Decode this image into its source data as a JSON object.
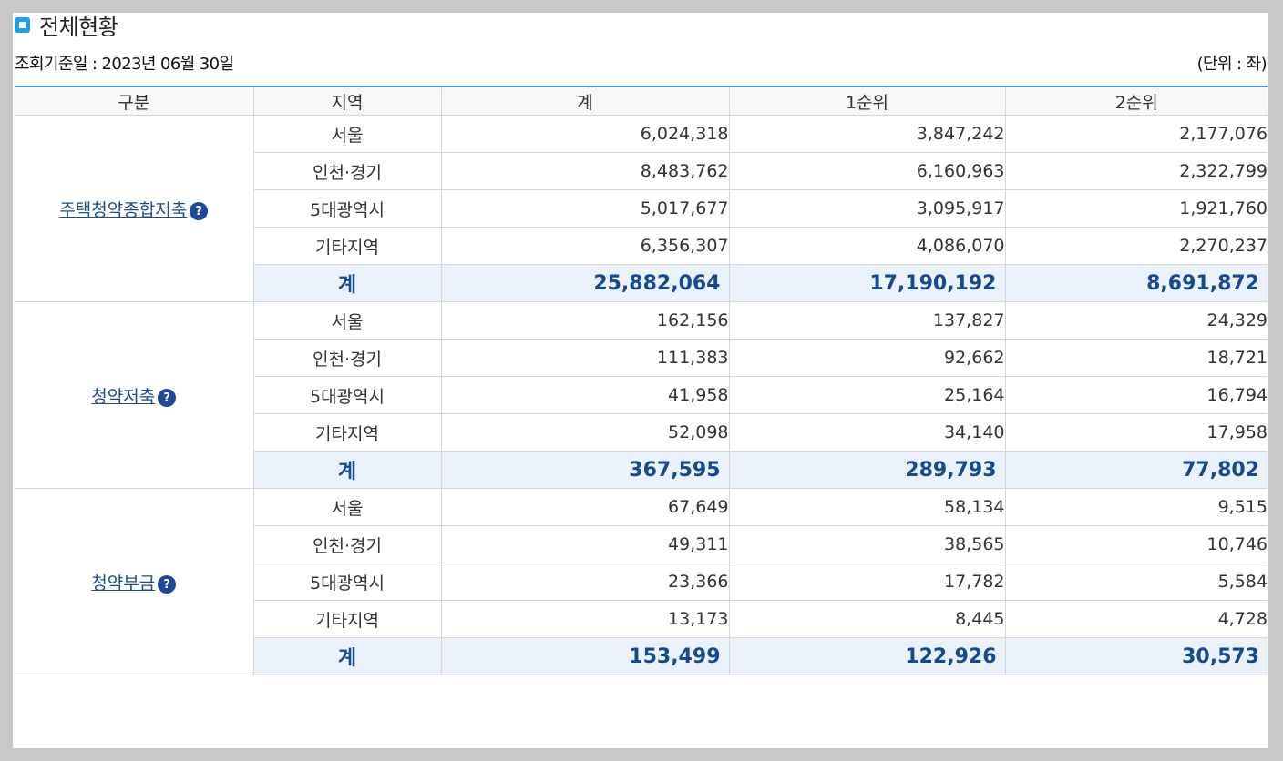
{
  "section": {
    "icon": "square-bullet-icon",
    "title": "전체현황",
    "base_date_label": "조회기준일 : 2023년 06월 30일",
    "unit_label": "(단위 : 좌)"
  },
  "table": {
    "headers": [
      "구분",
      "지역",
      "계",
      "1순위",
      "2순위"
    ],
    "groups": [
      {
        "name": "주택청약종합저축",
        "help_icon": "?",
        "rows": [
          {
            "region": "서울",
            "total": "6,024,318",
            "rank1": "3,847,242",
            "rank2": "2,177,076"
          },
          {
            "region": "인천·경기",
            "total": "8,483,762",
            "rank1": "6,160,963",
            "rank2": "2,322,799"
          },
          {
            "region": "5대광역시",
            "total": "5,017,677",
            "rank1": "3,095,917",
            "rank2": "1,921,760"
          },
          {
            "region": "기타지역",
            "total": "6,356,307",
            "rank1": "4,086,070",
            "rank2": "2,270,237"
          }
        ],
        "sum": {
          "label": "계",
          "total": "25,882,064",
          "rank1": "17,190,192",
          "rank2": "8,691,872"
        }
      },
      {
        "name": "청약저축",
        "help_icon": "?",
        "rows": [
          {
            "region": "서울",
            "total": "162,156",
            "rank1": "137,827",
            "rank2": "24,329"
          },
          {
            "region": "인천·경기",
            "total": "111,383",
            "rank1": "92,662",
            "rank2": "18,721"
          },
          {
            "region": "5대광역시",
            "total": "41,958",
            "rank1": "25,164",
            "rank2": "16,794"
          },
          {
            "region": "기타지역",
            "total": "52,098",
            "rank1": "34,140",
            "rank2": "17,958"
          }
        ],
        "sum": {
          "label": "계",
          "total": "367,595",
          "rank1": "289,793",
          "rank2": "77,802"
        }
      },
      {
        "name": "청약부금",
        "help_icon": "?",
        "rows": [
          {
            "region": "서울",
            "total": "67,649",
            "rank1": "58,134",
            "rank2": "9,515"
          },
          {
            "region": "인천·경기",
            "total": "49,311",
            "rank1": "38,565",
            "rank2": "10,746"
          },
          {
            "region": "5대광역시",
            "total": "23,366",
            "rank1": "17,782",
            "rank2": "5,584"
          },
          {
            "region": "기타지역",
            "total": "13,173",
            "rank1": "8,445",
            "rank2": "4,728"
          }
        ],
        "sum": {
          "label": "계",
          "total": "153,499",
          "rank1": "122,926",
          "rank2": "30,573"
        }
      }
    ]
  }
}
